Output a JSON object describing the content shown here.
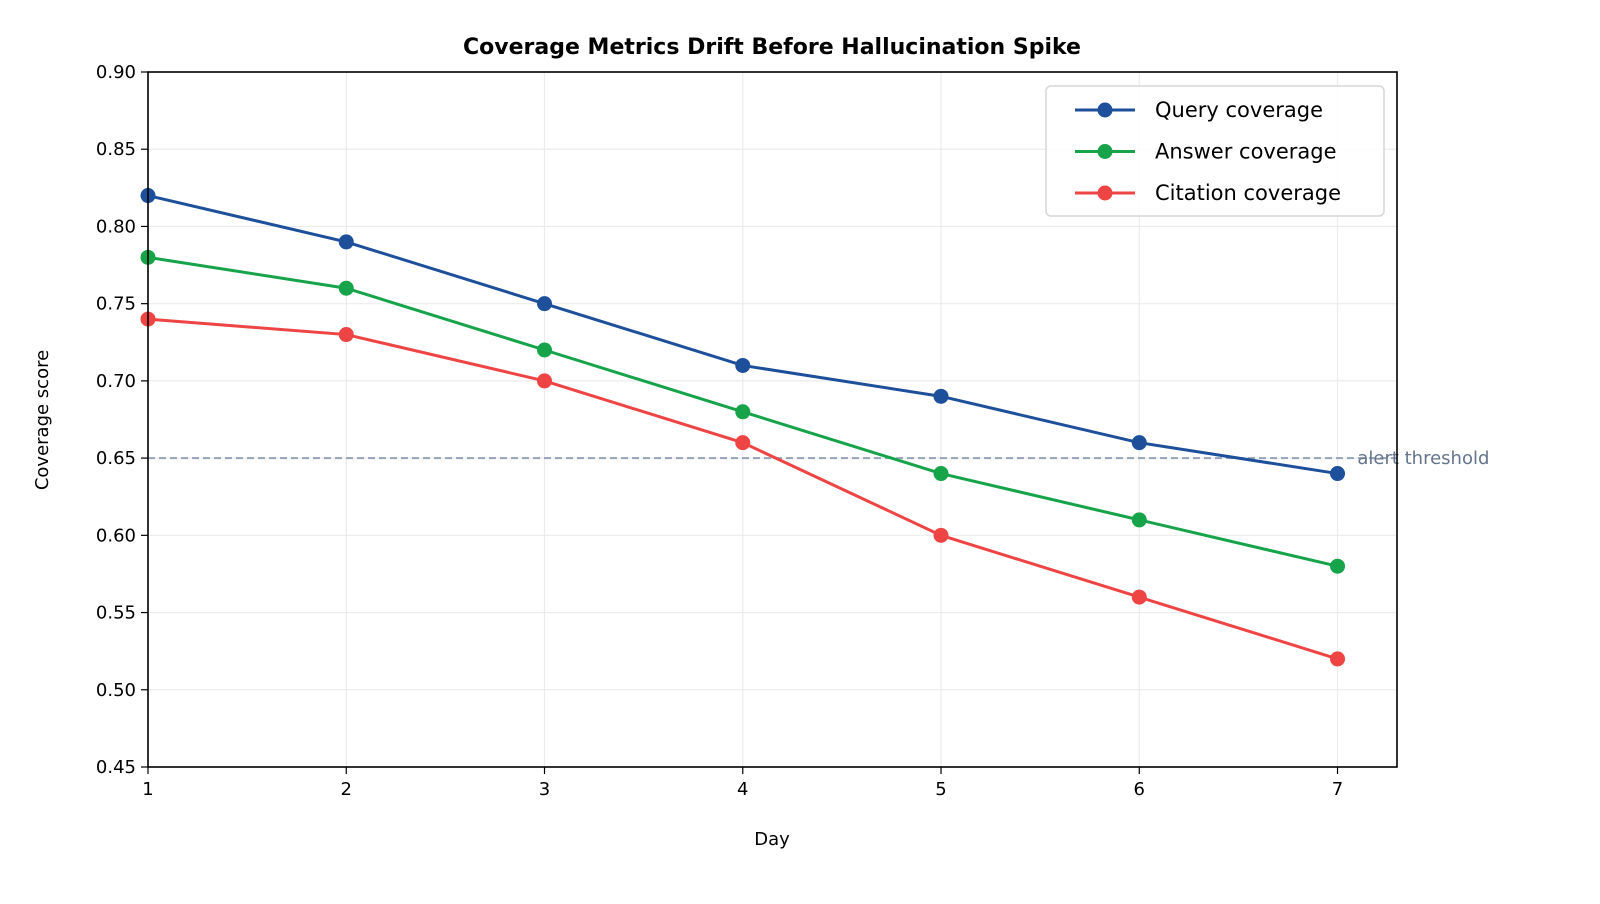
{
  "chart_data": {
    "type": "line",
    "title": "Coverage Metrics Drift Before Hallucination Spike",
    "xlabel": "Day",
    "ylabel": "Coverage score",
    "x": [
      1,
      2,
      3,
      4,
      5,
      6,
      7
    ],
    "xlim": [
      1,
      7.3
    ],
    "ylim": [
      0.45,
      0.9
    ],
    "xticks": [
      "1",
      "2",
      "3",
      "4",
      "5",
      "6",
      "7"
    ],
    "yticks": [
      "0.45",
      "0.50",
      "0.55",
      "0.60",
      "0.65",
      "0.70",
      "0.75",
      "0.80",
      "0.85",
      "0.90"
    ],
    "grid": true,
    "legend_position": "top-right",
    "series": [
      {
        "name": "Query coverage",
        "color": "#1d4f9b",
        "values": [
          0.82,
          0.79,
          0.75,
          0.71,
          0.69,
          0.66,
          0.64
        ]
      },
      {
        "name": "Answer coverage",
        "color": "#16a34a",
        "values": [
          0.78,
          0.76,
          0.72,
          0.68,
          0.64,
          0.61,
          0.58
        ]
      },
      {
        "name": "Citation coverage",
        "color": "#ef4444",
        "values": [
          0.74,
          0.73,
          0.7,
          0.66,
          0.6,
          0.56,
          0.52
        ]
      }
    ],
    "threshold": {
      "value": 0.65,
      "label": "alert threshold",
      "color": "#94a3b8",
      "label_color": "#64748b",
      "style": "dashed"
    }
  }
}
